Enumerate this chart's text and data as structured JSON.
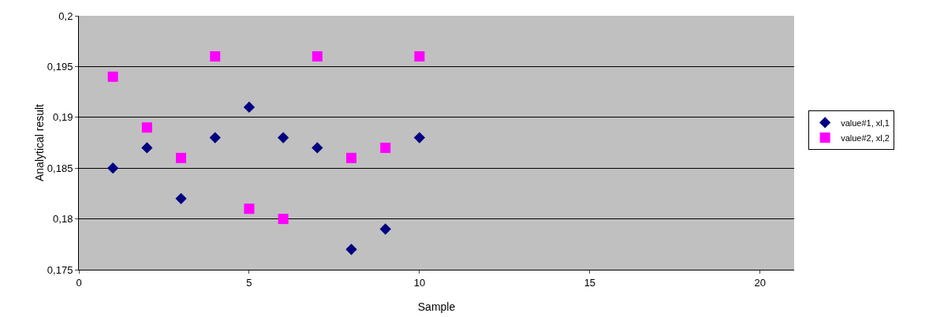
{
  "chart_data": {
    "type": "scatter",
    "xlabel": "Sample",
    "ylabel": "Analytical result",
    "xlim": [
      0,
      21
    ],
    "xticks": [
      0,
      5,
      10,
      15,
      20
    ],
    "ylim": [
      0.175,
      0.2
    ],
    "yticks": [
      {
        "value": 0.175,
        "label": "0,175"
      },
      {
        "value": 0.18,
        "label": "0,18"
      },
      {
        "value": 0.185,
        "label": "0,185"
      },
      {
        "value": 0.19,
        "label": "0,19"
      },
      {
        "value": 0.195,
        "label": "0,195"
      },
      {
        "value": 0.2,
        "label": "0,2"
      }
    ],
    "grid": "y",
    "legend": "right",
    "series": [
      {
        "name": "value#1, xl,1",
        "color": "#000080",
        "marker": "diamond",
        "x": [
          1,
          2,
          3,
          4,
          5,
          6,
          7,
          8,
          9,
          10
        ],
        "values": [
          0.185,
          0.187,
          0.182,
          0.188,
          0.191,
          0.188,
          0.187,
          0.177,
          0.179,
          0.188
        ]
      },
      {
        "name": "value#2, xl,2",
        "color": "#ff00ff",
        "marker": "square",
        "x": [
          1,
          2,
          3,
          4,
          5,
          6,
          7,
          8,
          9,
          10
        ],
        "values": [
          0.194,
          0.189,
          0.186,
          0.196,
          0.181,
          0.18,
          0.196,
          0.186,
          0.187,
          0.196
        ]
      }
    ]
  }
}
